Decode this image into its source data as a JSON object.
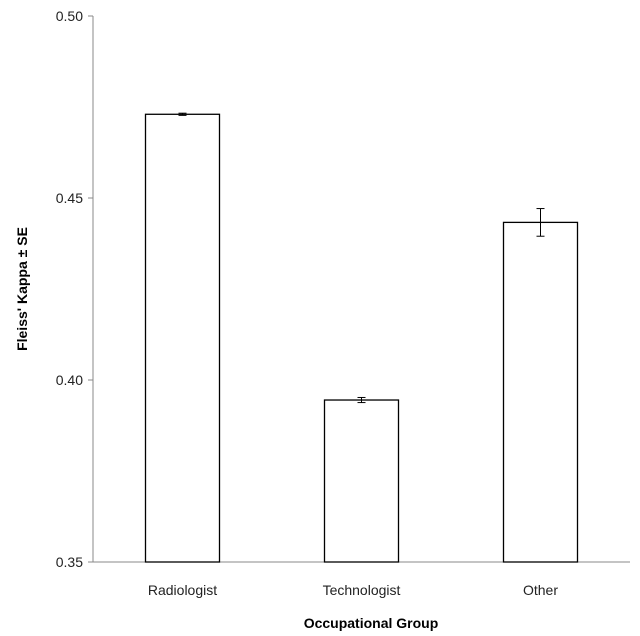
{
  "chart_data": {
    "type": "bar",
    "title": "",
    "xlabel": "Occupational Group",
    "ylabel": "Fleiss' Kappa ± SE",
    "categories": [
      "Radiologist",
      "Technologist",
      "Other"
    ],
    "values": [
      0.473,
      0.3945,
      0.4433
    ],
    "errors": [
      0.0003,
      0.0007,
      0.0038
    ],
    "ylim": [
      0.35,
      0.5
    ],
    "yticks": [
      0.35,
      0.4,
      0.45,
      0.5
    ],
    "ytick_labels": [
      "0.35",
      "0.40",
      "0.45",
      "0.50"
    ],
    "grid": false,
    "legend": "none",
    "bar_fill": "#ffffff",
    "bar_stroke": "#000000"
  }
}
